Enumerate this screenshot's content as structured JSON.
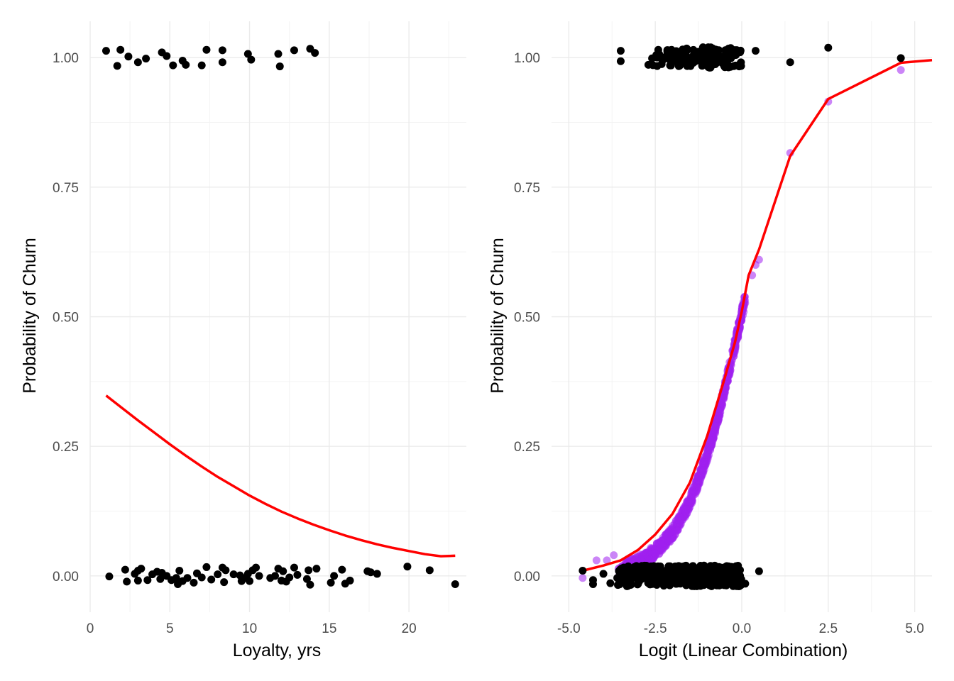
{
  "chart_data": [
    {
      "type": "scatter",
      "title": "",
      "xlabel": "Loyalty, yrs",
      "ylabel": "Probability of Churn",
      "xlim": [
        0,
        23.6
      ],
      "ylim": [
        -0.07,
        1.07
      ],
      "x_ticks": [
        0,
        5,
        10,
        15,
        20
      ],
      "x_tick_labels": [
        "0",
        "5",
        "10",
        "15",
        "20"
      ],
      "y_ticks": [
        0,
        0.25,
        0.5,
        0.75,
        1
      ],
      "y_tick_labels": [
        "0.00",
        "0.25",
        "0.50",
        "0.75",
        "1.00"
      ],
      "grid": true,
      "legend": "none",
      "points_color": "#000000",
      "curve_color": "#ff0000",
      "points": [
        {
          "x": 1.0,
          "y": 1.013
        },
        {
          "x": 1.7,
          "y": 0.984
        },
        {
          "x": 1.9,
          "y": 1.015
        },
        {
          "x": 2.4,
          "y": 1.002
        },
        {
          "x": 3.0,
          "y": 0.991
        },
        {
          "x": 3.5,
          "y": 0.998
        },
        {
          "x": 4.5,
          "y": 1.01
        },
        {
          "x": 4.8,
          "y": 1.003
        },
        {
          "x": 5.2,
          "y": 0.985
        },
        {
          "x": 5.8,
          "y": 0.994
        },
        {
          "x": 6.0,
          "y": 0.986
        },
        {
          "x": 7.0,
          "y": 0.985
        },
        {
          "x": 7.3,
          "y": 1.015
        },
        {
          "x": 8.3,
          "y": 1.014
        },
        {
          "x": 8.3,
          "y": 0.991
        },
        {
          "x": 9.9,
          "y": 1.007
        },
        {
          "x": 10.1,
          "y": 0.996
        },
        {
          "x": 11.8,
          "y": 1.007
        },
        {
          "x": 11.9,
          "y": 0.983
        },
        {
          "x": 12.8,
          "y": 1.014
        },
        {
          "x": 13.8,
          "y": 1.017
        },
        {
          "x": 14.1,
          "y": 1.009
        },
        {
          "x": 1.2,
          "y": -0.001
        },
        {
          "x": 2.2,
          "y": 0.012
        },
        {
          "x": 2.3,
          "y": -0.011
        },
        {
          "x": 2.8,
          "y": 0.004
        },
        {
          "x": 3.0,
          "y": 0.01
        },
        {
          "x": 3.2,
          "y": 0.014
        },
        {
          "x": 3.0,
          "y": -0.009
        },
        {
          "x": 3.6,
          "y": -0.008
        },
        {
          "x": 3.9,
          "y": 0.003
        },
        {
          "x": 4.2,
          "y": 0.008
        },
        {
          "x": 4.4,
          "y": -0.006
        },
        {
          "x": 4.5,
          "y": 0.006
        },
        {
          "x": 4.8,
          "y": 0.0
        },
        {
          "x": 5.1,
          "y": -0.008
        },
        {
          "x": 5.4,
          "y": -0.004
        },
        {
          "x": 5.5,
          "y": -0.016
        },
        {
          "x": 5.6,
          "y": 0.01
        },
        {
          "x": 5.8,
          "y": -0.01
        },
        {
          "x": 6.1,
          "y": -0.004
        },
        {
          "x": 6.5,
          "y": -0.013
        },
        {
          "x": 6.7,
          "y": 0.005
        },
        {
          "x": 7.0,
          "y": -0.003
        },
        {
          "x": 7.3,
          "y": 0.017
        },
        {
          "x": 7.6,
          "y": -0.007
        },
        {
          "x": 8.0,
          "y": 0.003
        },
        {
          "x": 8.3,
          "y": 0.016
        },
        {
          "x": 8.4,
          "y": -0.012
        },
        {
          "x": 8.5,
          "y": 0.011
        },
        {
          "x": 9.0,
          "y": 0.003
        },
        {
          "x": 9.4,
          "y": 0.001
        },
        {
          "x": 9.5,
          "y": -0.01
        },
        {
          "x": 9.7,
          "y": -0.004
        },
        {
          "x": 9.9,
          "y": 0.004
        },
        {
          "x": 10.0,
          "y": -0.01
        },
        {
          "x": 10.2,
          "y": 0.011
        },
        {
          "x": 10.4,
          "y": 0.016
        },
        {
          "x": 10.6,
          "y": 0.0
        },
        {
          "x": 11.3,
          "y": -0.004
        },
        {
          "x": 11.6,
          "y": 0.0
        },
        {
          "x": 11.8,
          "y": 0.014
        },
        {
          "x": 12.0,
          "y": -0.009
        },
        {
          "x": 12.1,
          "y": 0.009
        },
        {
          "x": 12.3,
          "y": -0.011
        },
        {
          "x": 12.5,
          "y": -0.003
        },
        {
          "x": 12.8,
          "y": 0.016
        },
        {
          "x": 13.0,
          "y": 0.002
        },
        {
          "x": 13.6,
          "y": -0.006
        },
        {
          "x": 13.7,
          "y": 0.011
        },
        {
          "x": 13.8,
          "y": -0.017
        },
        {
          "x": 14.2,
          "y": 0.014
        },
        {
          "x": 15.1,
          "y": -0.013
        },
        {
          "x": 15.3,
          "y": 0.0
        },
        {
          "x": 15.8,
          "y": 0.012
        },
        {
          "x": 16.0,
          "y": -0.015
        },
        {
          "x": 16.3,
          "y": -0.009
        },
        {
          "x": 17.4,
          "y": 0.009
        },
        {
          "x": 17.6,
          "y": 0.007
        },
        {
          "x": 18.0,
          "y": 0.004
        },
        {
          "x": 19.9,
          "y": 0.018
        },
        {
          "x": 21.3,
          "y": 0.011
        },
        {
          "x": 22.9,
          "y": -0.016
        }
      ],
      "curve": [
        {
          "x": 1.0,
          "y": 0.348
        },
        {
          "x": 2.0,
          "y": 0.324
        },
        {
          "x": 3.0,
          "y": 0.3
        },
        {
          "x": 4.0,
          "y": 0.277
        },
        {
          "x": 5.0,
          "y": 0.254
        },
        {
          "x": 6.0,
          "y": 0.232
        },
        {
          "x": 7.0,
          "y": 0.211
        },
        {
          "x": 8.0,
          "y": 0.191
        },
        {
          "x": 9.0,
          "y": 0.173
        },
        {
          "x": 10.0,
          "y": 0.155
        },
        {
          "x": 11.0,
          "y": 0.139
        },
        {
          "x": 12.0,
          "y": 0.124
        },
        {
          "x": 13.0,
          "y": 0.111
        },
        {
          "x": 14.0,
          "y": 0.099
        },
        {
          "x": 15.0,
          "y": 0.088
        },
        {
          "x": 16.0,
          "y": 0.078
        },
        {
          "x": 17.0,
          "y": 0.069
        },
        {
          "x": 18.0,
          "y": 0.061
        },
        {
          "x": 19.0,
          "y": 0.054
        },
        {
          "x": 20.0,
          "y": 0.048
        },
        {
          "x": 21.0,
          "y": 0.042
        },
        {
          "x": 22.0,
          "y": 0.038
        },
        {
          "x": 22.9,
          "y": 0.039
        }
      ]
    },
    {
      "type": "scatter",
      "title": "",
      "xlabel": "Logit (Linear Combination)",
      "ylabel": "Probability of Churn",
      "xlim": [
        -5.5,
        5.5
      ],
      "ylim": [
        -0.07,
        1.07
      ],
      "x_ticks": [
        -5,
        -2.5,
        0,
        2.5,
        5
      ],
      "x_tick_labels": [
        "-5.0",
        "-2.5",
        "0.0",
        "2.5",
        "5.0"
      ],
      "y_ticks": [
        0,
        0.25,
        0.5,
        0.75,
        1
      ],
      "y_tick_labels": [
        "0.00",
        "0.25",
        "0.50",
        "0.75",
        "1.00"
      ],
      "grid": true,
      "legend": "none",
      "points_color": "#000000",
      "fitted_color": "#a020f0",
      "curve_color": "#ff0000",
      "observed_points_sparse": [
        {
          "x": -4.6,
          "y": 0.01
        },
        {
          "x": -4.3,
          "y": -0.016
        },
        {
          "x": -4.3,
          "y": -0.008
        },
        {
          "x": -4.0,
          "y": 0.004
        },
        {
          "x": -3.8,
          "y": -0.014
        },
        {
          "x": -3.6,
          "y": -0.004
        },
        {
          "x": -3.5,
          "y": 0.013
        },
        {
          "x": -3.5,
          "y": 1.013
        },
        {
          "x": -3.5,
          "y": 0.993
        },
        {
          "x": -2.7,
          "y": 0.986
        },
        {
          "x": -1.4,
          "y": 0.99
        },
        {
          "x": 0.0,
          "y": -0.015
        },
        {
          "x": 0.1,
          "y": -0.015
        },
        {
          "x": 0.4,
          "y": 1.013
        },
        {
          "x": 0.5,
          "y": 0.009
        },
        {
          "x": 1.4,
          "y": 0.991
        },
        {
          "x": 2.5,
          "y": 1.019
        },
        {
          "x": 4.6,
          "y": 0.999
        }
      ],
      "observed_clusters": [
        {
          "y": 1.0,
          "x_range": [
            -2.6,
            0.0
          ],
          "y_jitter": 0.02,
          "count": 150
        },
        {
          "y": 0.0,
          "x_range": [
            -3.6,
            0.0
          ],
          "y_jitter": 0.02,
          "count": 420
        }
      ],
      "fitted_sparse": [
        {
          "x": -4.6,
          "y": -0.004
        },
        {
          "x": -4.2,
          "y": 0.03
        },
        {
          "x": -3.9,
          "y": 0.03
        },
        {
          "x": -3.7,
          "y": 0.04
        },
        {
          "x": 0.3,
          "y": 0.58
        },
        {
          "x": 0.4,
          "y": 0.6
        },
        {
          "x": 0.5,
          "y": 0.61
        },
        {
          "x": 1.4,
          "y": 0.816
        },
        {
          "x": 2.5,
          "y": 0.915
        },
        {
          "x": 4.6,
          "y": 0.976
        }
      ],
      "fitted_dense_x_range": [
        -3.6,
        0.1
      ],
      "curve": [
        {
          "x": -4.6,
          "y": 0.01
        },
        {
          "x": -4.0,
          "y": 0.02
        },
        {
          "x": -3.5,
          "y": 0.03
        },
        {
          "x": -3.0,
          "y": 0.05
        },
        {
          "x": -2.5,
          "y": 0.08
        },
        {
          "x": -2.0,
          "y": 0.12
        },
        {
          "x": -1.5,
          "y": 0.18
        },
        {
          "x": -1.0,
          "y": 0.27
        },
        {
          "x": -0.5,
          "y": 0.38
        },
        {
          "x": -0.2,
          "y": 0.45
        },
        {
          "x": 0.0,
          "y": 0.51
        },
        {
          "x": 0.2,
          "y": 0.58
        },
        {
          "x": 0.5,
          "y": 0.63
        },
        {
          "x": 1.4,
          "y": 0.81
        },
        {
          "x": 2.5,
          "y": 0.92
        },
        {
          "x": 4.6,
          "y": 0.99
        },
        {
          "x": 5.5,
          "y": 0.995
        }
      ]
    }
  ]
}
